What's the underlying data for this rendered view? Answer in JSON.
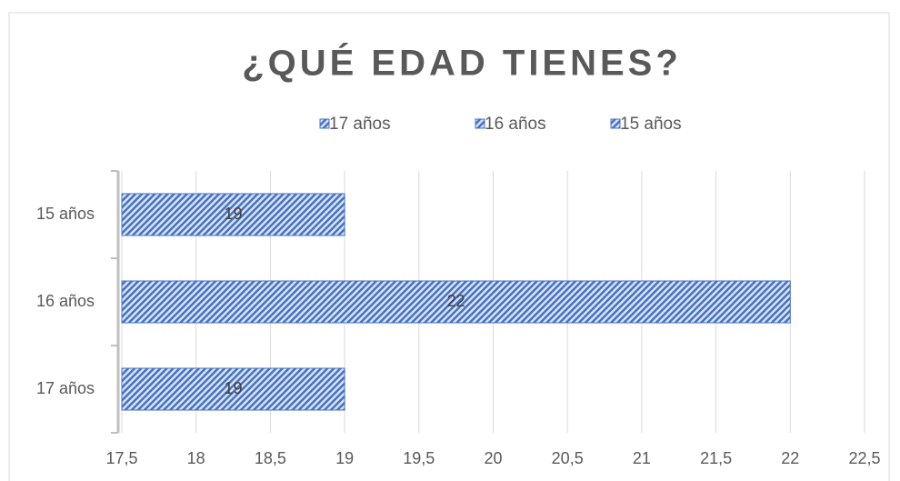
{
  "chart_data": {
    "type": "bar",
    "orientation": "horizontal",
    "title": "¿QUÉ EDAD TIENES?",
    "categories": [
      "17 años",
      "16 años",
      "15 años"
    ],
    "values": [
      19,
      22,
      19
    ],
    "color": "#4472c4",
    "xlim": [
      17.5,
      22.5
    ],
    "xticks": [
      {
        "value": 17.5,
        "label": "17,5"
      },
      18,
      {
        "value": 18.5,
        "label": "18,5"
      },
      19,
      {
        "value": 19.5,
        "label": "19,5"
      },
      20,
      {
        "value": 20.5,
        "label": "20,5"
      },
      21,
      {
        "value": 21.5,
        "label": "21,5"
      },
      22,
      {
        "value": 22.5,
        "label": "22,5"
      }
    ],
    "grid": true,
    "legend": "top"
  }
}
